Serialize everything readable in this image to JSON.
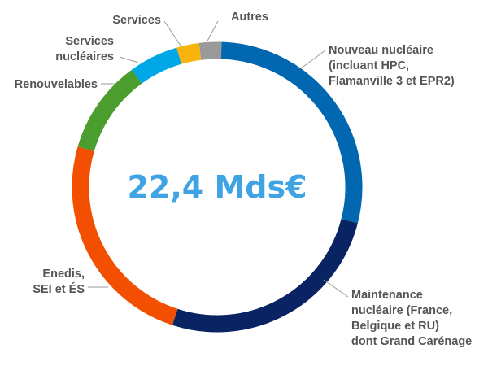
{
  "chart_data": {
    "type": "pie",
    "subtype": "donut",
    "center_label": "22,4 Mds€",
    "total": 22.4,
    "unit": "Mds€",
    "slices": [
      {
        "label": [
          "Nouveau nucléaire",
          "(incluant HPC,",
          "Flamanville 3 et EPR2)"
        ],
        "share_pct": 29.0,
        "color": "#0067b0"
      },
      {
        "label": [
          "Maintenance",
          "nucléaire (France,",
          "Belgique et RU)",
          "dont Grand Carénage"
        ],
        "share_pct": 26.0,
        "color": "#0a2463"
      },
      {
        "label": [
          "Enedis,",
          "SEI et ÉS"
        ],
        "share_pct": 24.5,
        "color": "#f24f00"
      },
      {
        "label": [
          "Renouvelables"
        ],
        "share_pct": 10.5,
        "color": "#4b9e2d"
      },
      {
        "label": [
          "Services",
          "nucléaires"
        ],
        "share_pct": 5.5,
        "color": "#00a7e7"
      },
      {
        "label": [
          "Services"
        ],
        "share_pct": 2.5,
        "color": "#f8b40c"
      },
      {
        "label": [
          "Autres"
        ],
        "share_pct": 2.5,
        "color": "#9a9a9a"
      }
    ]
  }
}
